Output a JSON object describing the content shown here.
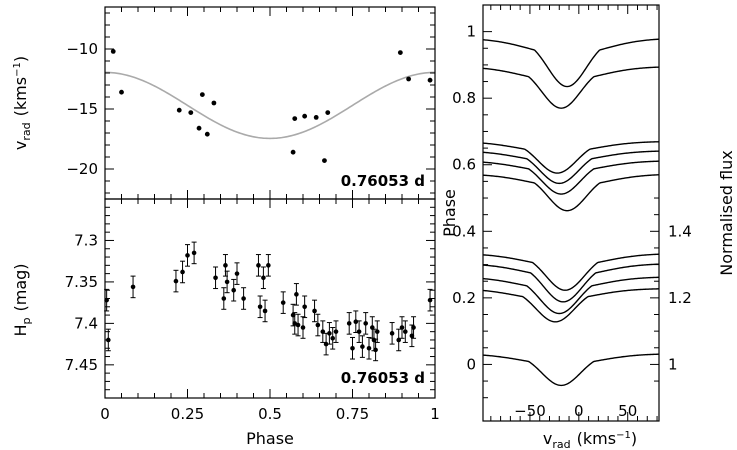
{
  "chart_data": [
    {
      "id": "rv",
      "type": "scatter",
      "xlim": [
        0,
        1
      ],
      "ylim": [
        -22.5,
        -6.5
      ],
      "ylabel_main": "v",
      "ylabel_sub": "rad",
      "ylabel_unit_open": "(kms",
      "ylabel_unit_sup": "−1",
      "ylabel_unit_close": ")",
      "yticks": [
        -10,
        -15,
        -20
      ],
      "ytick_labels": [
        "−10",
        "−15",
        "−20"
      ],
      "annotation": "0.76053 d",
      "points": [
        {
          "x": 0.025,
          "y": -10.2
        },
        {
          "x": 0.05,
          "y": -13.6
        },
        {
          "x": 0.225,
          "y": -15.1
        },
        {
          "x": 0.26,
          "y": -15.3
        },
        {
          "x": 0.285,
          "y": -16.6
        },
        {
          "x": 0.295,
          "y": -13.8
        },
        {
          "x": 0.31,
          "y": -17.1
        },
        {
          "x": 0.33,
          "y": -14.5
        },
        {
          "x": 0.57,
          "y": -18.6
        },
        {
          "x": 0.575,
          "y": -15.8
        },
        {
          "x": 0.605,
          "y": -15.6
        },
        {
          "x": 0.64,
          "y": -15.7
        },
        {
          "x": 0.665,
          "y": -19.3
        },
        {
          "x": 0.675,
          "y": -15.3
        },
        {
          "x": 0.895,
          "y": -10.3
        },
        {
          "x": 0.92,
          "y": -12.5
        },
        {
          "x": 0.985,
          "y": -12.6
        }
      ],
      "fit": {
        "mean": -14.7,
        "amplitude": 2.75,
        "phase_min": 0.5,
        "color": "#aaaaaa"
      }
    },
    {
      "id": "hp",
      "type": "scatter",
      "xlim": [
        0,
        1
      ],
      "ylim": [
        7.49,
        7.25
      ],
      "xlabel": "Phase",
      "xticks": [
        0,
        0.25,
        0.5,
        0.75,
        1
      ],
      "xtick_labels": [
        "0",
        "0.25",
        "0.5",
        "0.75",
        "1"
      ],
      "ylabel_main": "H",
      "ylabel_sub": "p",
      "ylabel_unit": "(mag)",
      "yticks": [
        7.3,
        7.35,
        7.4,
        7.45
      ],
      "ytick_labels": [
        "7.3",
        "7.35",
        "7.4",
        "7.45"
      ],
      "annotation": "0.76053 d",
      "error": 0.013,
      "points": [
        {
          "x": 0.005,
          "y": 7.372
        },
        {
          "x": 0.01,
          "y": 7.42
        },
        {
          "x": 0.085,
          "y": 7.356
        },
        {
          "x": 0.215,
          "y": 7.349
        },
        {
          "x": 0.235,
          "y": 7.338
        },
        {
          "x": 0.25,
          "y": 7.318
        },
        {
          "x": 0.27,
          "y": 7.315
        },
        {
          "x": 0.335,
          "y": 7.345
        },
        {
          "x": 0.36,
          "y": 7.37
        },
        {
          "x": 0.365,
          "y": 7.33
        },
        {
          "x": 0.37,
          "y": 7.35
        },
        {
          "x": 0.39,
          "y": 7.36
        },
        {
          "x": 0.4,
          "y": 7.34
        },
        {
          "x": 0.42,
          "y": 7.37
        },
        {
          "x": 0.465,
          "y": 7.33
        },
        {
          "x": 0.48,
          "y": 7.345
        },
        {
          "x": 0.47,
          "y": 7.38
        },
        {
          "x": 0.485,
          "y": 7.385
        },
        {
          "x": 0.495,
          "y": 7.33
        },
        {
          "x": 0.54,
          "y": 7.375
        },
        {
          "x": 0.57,
          "y": 7.39
        },
        {
          "x": 0.575,
          "y": 7.4
        },
        {
          "x": 0.58,
          "y": 7.365
        },
        {
          "x": 0.585,
          "y": 7.402
        },
        {
          "x": 0.6,
          "y": 7.405
        },
        {
          "x": 0.605,
          "y": 7.38
        },
        {
          "x": 0.635,
          "y": 7.385
        },
        {
          "x": 0.645,
          "y": 7.402
        },
        {
          "x": 0.66,
          "y": 7.41
        },
        {
          "x": 0.67,
          "y": 7.425
        },
        {
          "x": 0.68,
          "y": 7.412
        },
        {
          "x": 0.69,
          "y": 7.418
        },
        {
          "x": 0.7,
          "y": 7.41
        },
        {
          "x": 0.74,
          "y": 7.4
        },
        {
          "x": 0.75,
          "y": 7.43
        },
        {
          "x": 0.76,
          "y": 7.398
        },
        {
          "x": 0.77,
          "y": 7.41
        },
        {
          "x": 0.78,
          "y": 7.428
        },
        {
          "x": 0.79,
          "y": 7.4
        },
        {
          "x": 0.8,
          "y": 7.43
        },
        {
          "x": 0.81,
          "y": 7.405
        },
        {
          "x": 0.815,
          "y": 7.42
        },
        {
          "x": 0.82,
          "y": 7.432
        },
        {
          "x": 0.825,
          "y": 7.41
        },
        {
          "x": 0.87,
          "y": 7.412
        },
        {
          "x": 0.89,
          "y": 7.42
        },
        {
          "x": 0.9,
          "y": 7.405
        },
        {
          "x": 0.91,
          "y": 7.41
        },
        {
          "x": 0.93,
          "y": 7.415
        },
        {
          "x": 0.935,
          "y": 7.405
        },
        {
          "x": 0.985,
          "y": 7.372
        }
      ]
    },
    {
      "id": "profiles",
      "type": "line",
      "xlim": [
        -98,
        82
      ],
      "xticks": [
        -50,
        0,
        50
      ],
      "xtick_labels": [
        "−50",
        "0",
        "50"
      ],
      "xlabel_main": "v",
      "xlabel_sub": "rad",
      "xlabel_unit_open": "(kms",
      "xlabel_unit_sup": "−1",
      "xlabel_unit_close": ")",
      "ylim": [
        -0.17,
        1.08
      ],
      "yticks": [
        0,
        0.2,
        0.4,
        0.6,
        0.8,
        1
      ],
      "ytick_labels": [
        "0",
        "0.2",
        "0.4",
        "0.6",
        "0.8",
        "1"
      ],
      "ylabel": "Phase",
      "flux_ticks": [
        1,
        1.2,
        1.4
      ],
      "flux_tick_labels": [
        "1",
        "1.2",
        "1.4"
      ],
      "flux_label": "Normalised flux",
      "profiles": [
        {
          "phase": 0.98,
          "depth": 0.145,
          "center": -12
        },
        {
          "phase": 0.895,
          "depth": 0.125,
          "center": -18
        },
        {
          "phase": 0.67,
          "depth": 0.095,
          "center": -22
        },
        {
          "phase": 0.642,
          "depth": 0.098,
          "center": -20
        },
        {
          "phase": 0.612,
          "depth": 0.1,
          "center": -18
        },
        {
          "phase": 0.572,
          "depth": 0.11,
          "center": -12
        },
        {
          "phase": 0.333,
          "depth": 0.11,
          "center": -14
        },
        {
          "phase": 0.303,
          "depth": 0.115,
          "center": -16
        },
        {
          "phase": 0.263,
          "depth": 0.11,
          "center": -20
        },
        {
          "phase": 0.228,
          "depth": 0.1,
          "center": -24
        },
        {
          "phase": 0.032,
          "depth": 0.095,
          "center": -18
        }
      ]
    }
  ]
}
